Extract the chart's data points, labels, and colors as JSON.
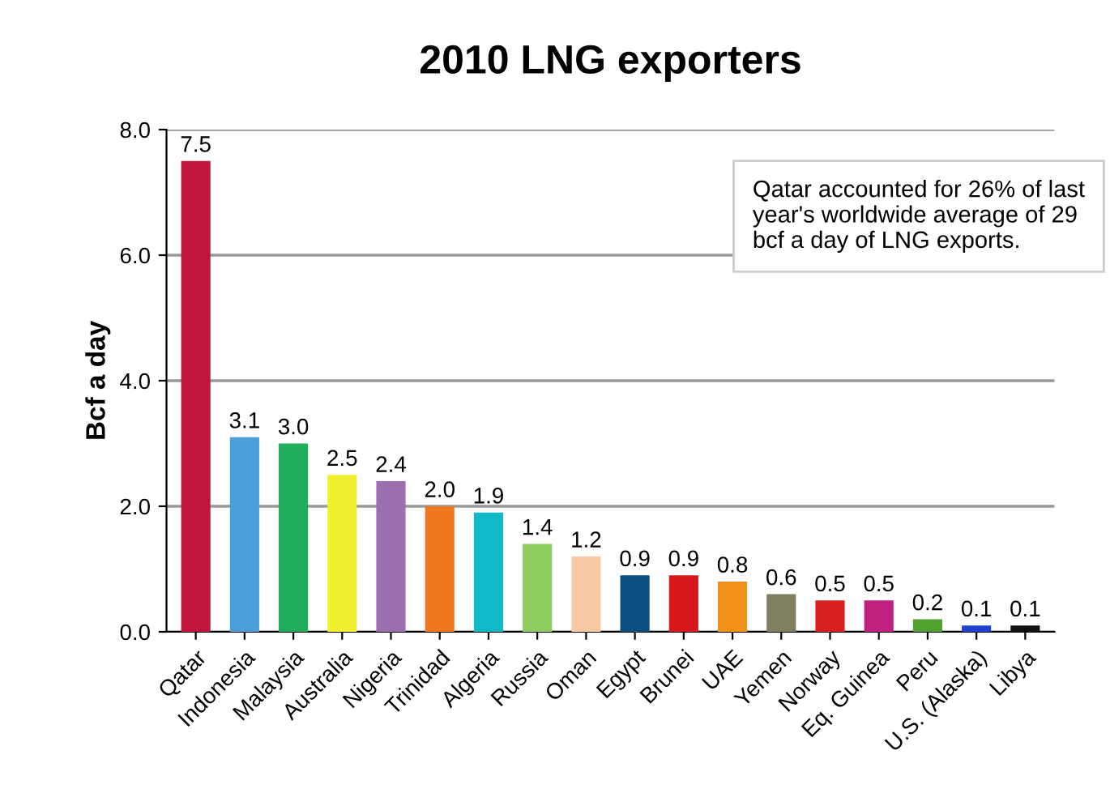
{
  "chart_data": {
    "type": "bar",
    "title": "2010 LNG exporters",
    "ylabel": "Bcf a day",
    "categories": [
      "Qatar",
      "Indonesia",
      "Malaysia",
      "Australia",
      "Nigeria",
      "Trinidad",
      "Algeria",
      "Russia",
      "Oman",
      "Egypt",
      "Brunei",
      "UAE",
      "Yemen",
      "Norway",
      "Eq. Guinea",
      "Peru",
      "U.S. (Alaska)",
      "Libya"
    ],
    "values": [
      7.5,
      3.1,
      3.0,
      2.5,
      2.4,
      2.0,
      1.9,
      1.4,
      1.2,
      0.9,
      0.9,
      0.8,
      0.6,
      0.5,
      0.5,
      0.2,
      0.1,
      0.1
    ],
    "colors": [
      "#c0143c",
      "#4a9fd8",
      "#1fae5a",
      "#f0f030",
      "#9b6fb0",
      "#f07820",
      "#10b8c8",
      "#8fcc60",
      "#f8c8a0",
      "#0a5080",
      "#d81818",
      "#f09018",
      "#808060",
      "#d82020",
      "#c02080",
      "#50a030",
      "#2040d0",
      "#101010"
    ],
    "ylim": [
      0,
      8
    ],
    "yticks": [
      {
        "value": 0,
        "label": "0.0"
      },
      {
        "value": 2,
        "label": "2.0"
      },
      {
        "value": 4,
        "label": "4.0"
      },
      {
        "value": 6,
        "label": "6.0"
      },
      {
        "value": 8,
        "label": "8.0"
      }
    ],
    "grid": "y",
    "value_labels": [
      "7.5",
      "3.1",
      "3.0",
      "2.5",
      "2.4",
      "2.0",
      "1.9",
      "1.4",
      "1.2",
      "0.9",
      "0.9",
      "0.8",
      "0.6",
      "0.5",
      "0.5",
      "0.2",
      "0.1",
      "0.1"
    ],
    "annotations": [
      "Qatar accounted for 26% of last year's worldwide average of 29 bcf a day of LNG exports."
    ]
  }
}
